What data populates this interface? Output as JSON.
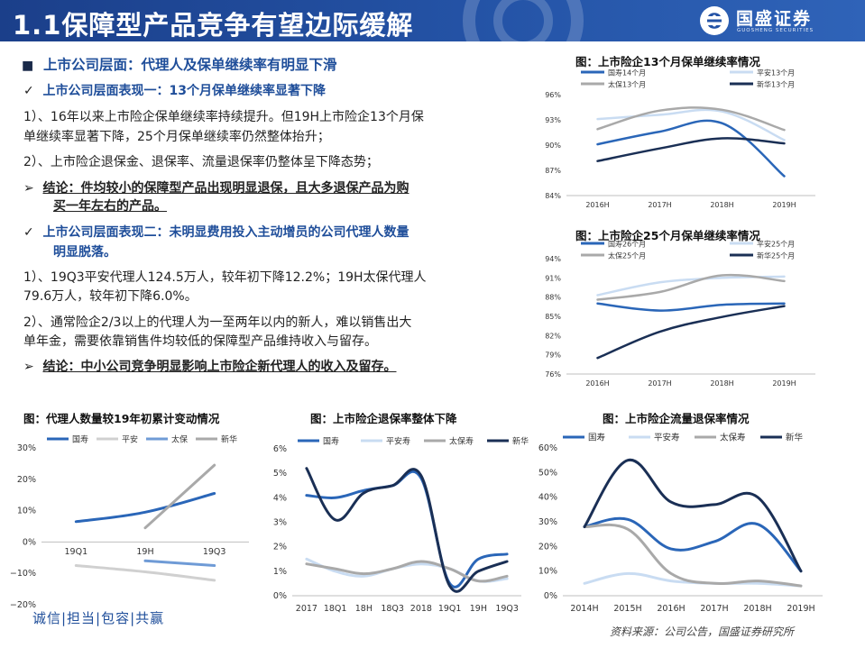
{
  "header": {
    "title": "1.1保障型产品竞争有望边际缓解",
    "brand_name": "国盛证券",
    "brand_sub": "GUOSHENG SECURITIES",
    "bg_color": "#2453a6"
  },
  "body_text": {
    "heading": "上市公司层面：代理人及保单继续率有明显下滑",
    "sub1": "上市公司层面表现一：13个月保单继续率显著下降",
    "p1_line1": "1）、16年以来上市险企保单继续率持续提升。但19H上市险企13个月保",
    "p1_line2": "单继续率显著下降，25个月保单继续率仍然整体抬升；",
    "p2": "2）、上市险企退保金、退保率、流量退保率仍整体呈下降态势；",
    "conclusion1_line1": "结论：件均较小的保障型产品出现明显退保，且大多退保产品为购",
    "conclusion1_line2": "买一年左右的产品。",
    "sub2_line1": "上市公司层面表现二：未明显费用投入主动增员的公司代理人数量",
    "sub2_line2": "明显脱落。",
    "p3_line1": "1）、19Q3平安代理人124.5万人，较年初下降12.2%；19H太保代理人",
    "p3_line2": "79.6万人，较年初下降6.0%。",
    "p4_line1": "2）、通常险企2/3以上的代理人为一至两年以内的新人，难以销售出大",
    "p4_line2": "单年金，需要依靠销售件均较低的保障型产品维持收入与留存。",
    "conclusion2": "结论：中小公司竞争明显影响上市险企新代理人的收入及留存。"
  },
  "footer": {
    "slogan": "诚信|担当|包容|共赢",
    "source": "资料来源：公司公告，国盛证券研究所"
  },
  "colors": {
    "guoshou": "#2a66b8",
    "pingan": "#c9dcf2",
    "taibao": "#a9a9a9",
    "xinhua": "#1a2f55",
    "taibao_agent": "#6f9bd6"
  },
  "chart_data": [
    {
      "id": "c13",
      "type": "line",
      "title": "图：上市险企13个月保单继续率情况",
      "categories": [
        "2016H",
        "2017H",
        "2018H",
        "2019H"
      ],
      "ylim": [
        84,
        96
      ],
      "yticks": [
        "84%",
        "87%",
        "90%",
        "93%",
        "96%"
      ],
      "grid": false,
      "legend": "top",
      "series": [
        {
          "name": "国寿14个月",
          "color": "#2a66b8",
          "values": [
            90.1,
            91.6,
            92.6,
            86.3
          ]
        },
        {
          "name": "平安13个月",
          "color": "#c9dcf2",
          "values": [
            93.1,
            93.6,
            94.0,
            90.6
          ]
        },
        {
          "name": "太保13个月",
          "color": "#a9a9a9",
          "values": [
            91.9,
            94.1,
            94.2,
            91.8
          ]
        },
        {
          "name": "新华13个月",
          "color": "#1a2f55",
          "values": [
            88.1,
            89.6,
            90.8,
            90.2
          ]
        }
      ]
    },
    {
      "id": "c25",
      "type": "line",
      "title": "图：上市险企25个月保单继续率情况",
      "categories": [
        "2016H",
        "2017H",
        "2018H",
        "2019H"
      ],
      "ylim": [
        76,
        94
      ],
      "yticks": [
        "76%",
        "79%",
        "82%",
        "85%",
        "88%",
        "91%",
        "94%"
      ],
      "grid": false,
      "legend": "top",
      "series": [
        {
          "name": "国寿26个月",
          "color": "#2a66b8",
          "values": [
            87.0,
            85.9,
            86.8,
            87.0
          ]
        },
        {
          "name": "平安25个月",
          "color": "#c9dcf2",
          "values": [
            88.3,
            90.3,
            91.0,
            91.2
          ]
        },
        {
          "name": "太保25个月",
          "color": "#a9a9a9",
          "values": [
            87.6,
            88.8,
            91.4,
            90.5
          ]
        },
        {
          "name": "新华25个月",
          "color": "#1a2f55",
          "values": [
            78.5,
            82.6,
            84.9,
            86.6
          ]
        }
      ]
    },
    {
      "id": "cagent",
      "type": "line",
      "title": "图：代理人数量较19年初累计变动情况",
      "categories": [
        "19Q1",
        "19H",
        "19Q3"
      ],
      "ylim": [
        -20,
        30
      ],
      "yticks": [
        "−20%",
        "−10%",
        "0%",
        "10%",
        "20%",
        "30%"
      ],
      "grid": false,
      "legend": "top",
      "series": [
        {
          "name": "国寿",
          "color": "#2a66b8",
          "values": [
            6.5,
            9.5,
            15.5
          ]
        },
        {
          "name": "平安",
          "color": "#d0d0d0",
          "values": [
            -7.5,
            -9.5,
            -12.2
          ]
        },
        {
          "name": "太保",
          "color": "#6f9bd6",
          "values": [
            null,
            -6.0,
            -7.5
          ]
        },
        {
          "name": "新华",
          "color": "#a9a9a9",
          "values": [
            null,
            4.5,
            24.5
          ]
        }
      ]
    },
    {
      "id": "csurr",
      "type": "line",
      "title": "图：上市险企退保率整体下降",
      "categories": [
        "2017",
        "18Q1",
        "18H",
        "18Q3",
        "2018",
        "19Q1",
        "19H",
        "19Q3"
      ],
      "ylim": [
        0,
        6
      ],
      "yticks": [
        "0%",
        "1%",
        "2%",
        "3%",
        "4%",
        "5%",
        "6%"
      ],
      "grid": false,
      "legend": "top",
      "series": [
        {
          "name": "国寿",
          "color": "#2a66b8",
          "values": [
            4.1,
            4.0,
            4.3,
            4.5,
            4.8,
            0.5,
            1.5,
            1.7
          ]
        },
        {
          "name": "平安寿",
          "color": "#c9dcf2",
          "values": [
            1.5,
            1.0,
            0.8,
            1.1,
            1.3,
            1.1,
            0.6,
            0.7
          ]
        },
        {
          "name": "太保寿",
          "color": "#a9a9a9",
          "values": [
            1.3,
            1.1,
            0.9,
            1.1,
            1.4,
            1.1,
            0.6,
            0.8
          ]
        },
        {
          "name": "新华",
          "color": "#1a2f55",
          "values": [
            5.2,
            3.1,
            4.2,
            4.5,
            4.9,
            0.4,
            1.0,
            1.4
          ]
        }
      ]
    },
    {
      "id": "cflow",
      "type": "line",
      "title": "图：上市险企流量退保率情况",
      "categories": [
        "2014H",
        "2015H",
        "2016H",
        "2017H",
        "2018H",
        "2019H"
      ],
      "ylim": [
        0,
        60
      ],
      "yticks": [
        "0%",
        "10%",
        "20%",
        "30%",
        "40%",
        "50%",
        "60%"
      ],
      "grid": false,
      "legend": "top",
      "series": [
        {
          "name": "国寿",
          "color": "#2a66b8",
          "values": [
            28,
            31,
            19,
            22,
            29,
            10
          ]
        },
        {
          "name": "平安寿",
          "color": "#c9dcf2",
          "values": [
            5,
            9,
            6,
            5,
            5,
            4
          ]
        },
        {
          "name": "太保寿",
          "color": "#a9a9a9",
          "values": [
            28,
            27,
            9,
            5,
            6,
            4
          ]
        },
        {
          "name": "新华",
          "color": "#1a2f55",
          "values": [
            28,
            55,
            38,
            37,
            40,
            10
          ]
        }
      ]
    }
  ]
}
